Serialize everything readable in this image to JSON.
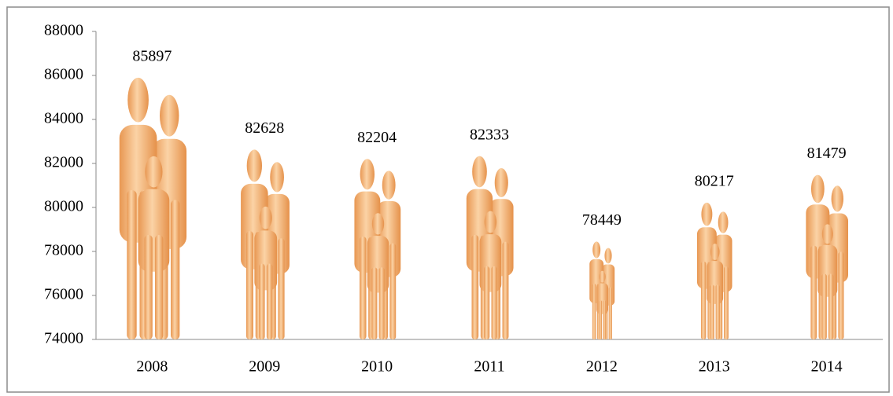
{
  "chart_data": {
    "type": "pictograph",
    "categories": [
      "2008",
      "2009",
      "2010",
      "2011",
      "2012",
      "2013",
      "2014"
    ],
    "values": [
      85897,
      82628,
      82204,
      82333,
      78449,
      80217,
      81479
    ],
    "color": "#f2ad6e",
    "ylim": [
      74000,
      88000
    ],
    "yticks": [
      74000,
      76000,
      78000,
      80000,
      82000,
      84000,
      86000,
      88000
    ]
  }
}
